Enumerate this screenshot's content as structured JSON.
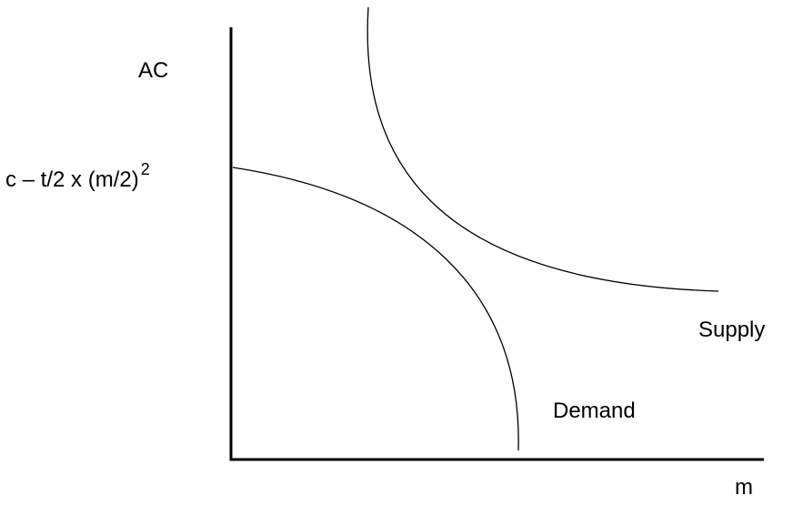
{
  "labels": {
    "y_axis": "AC",
    "x_axis": "m",
    "intercept_text": "c – t/2 x (m/2)",
    "intercept_exponent": "2",
    "supply": "Supply",
    "demand": "Demand"
  },
  "colors": {
    "line": "#000000",
    "background": "#ffffff"
  }
}
